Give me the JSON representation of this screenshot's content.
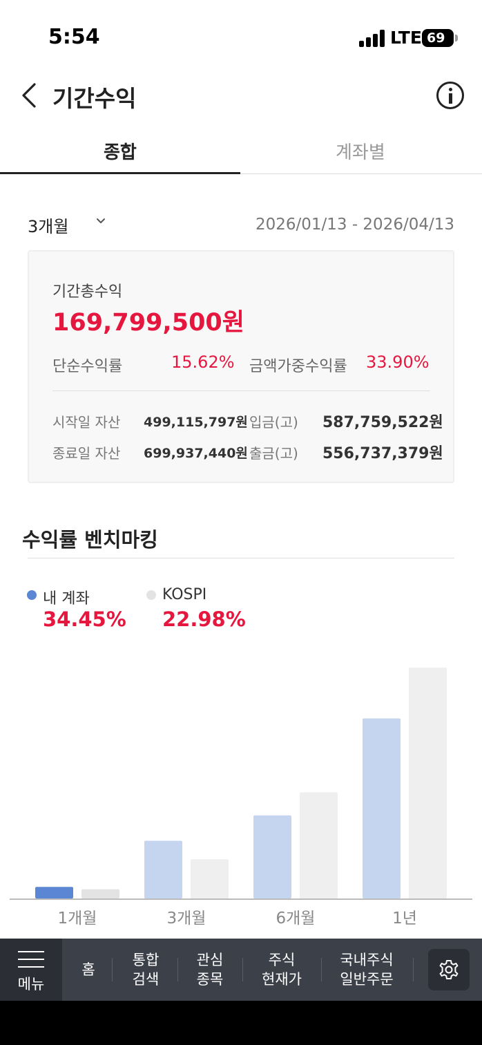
{
  "status_bar": {
    "time": "5:54",
    "network": "LTE",
    "battery": "69"
  },
  "header": {
    "title": "기간수익"
  },
  "tabs": [
    {
      "label": "종합",
      "active": true
    },
    {
      "label": "계좌별",
      "active": false
    }
  ],
  "period": {
    "selected": "3개월",
    "date_range": "2026/01/13 - 2026/04/13"
  },
  "summary": {
    "total_label": "기간총수익",
    "total_value": "169,799,500원",
    "simple_rate_label": "단순수익률",
    "simple_rate_value": "15.62%",
    "weighted_rate_label": "금액가중수익률",
    "weighted_rate_value": "33.90%",
    "start_asset_label": "시작일 자산",
    "start_asset_value": "499,115,797원",
    "end_asset_label": "종료일 자산",
    "end_asset_value": "699,937,440원",
    "deposit_label": "입금(고)",
    "deposit_value": "587,759,522원",
    "withdrawal_label": "출금(고)",
    "withdrawal_value": "556,737,379원"
  },
  "benchmark": {
    "title": "수익률 벤치마킹",
    "my_account_label": "내 계좌",
    "my_account_value": "34.45%",
    "kospi_label": "KOSPI",
    "kospi_value": "22.98%"
  },
  "chart_data": {
    "type": "bar",
    "categories": [
      "1개월",
      "3개월",
      "6개월",
      "1년"
    ],
    "series": [
      {
        "name": "내 계좌",
        "values": [
          5,
          25,
          36,
          78
        ],
        "colors": [
          "#5b86d4",
          "#c5d5ef",
          "#c5d5ef",
          "#c5d5ef"
        ]
      },
      {
        "name": "KOSPI",
        "values": [
          4,
          17,
          46,
          100
        ],
        "colors": [
          "#e3e3e3",
          "#efefef",
          "#efefef",
          "#efefef"
        ]
      }
    ],
    "ylim": [
      0,
      100
    ],
    "grid": false,
    "legend": "top-left"
  },
  "bottom_nav": {
    "menu_label": "메뉴",
    "items": [
      "홈",
      "통합\n검색",
      "관심\n종목",
      "주식\n현재가",
      "국내주식\n일반주문"
    ]
  },
  "colors": {
    "accent_red": "#e5173f",
    "my_account": "#5b86d4",
    "kospi": "#e3e3e3",
    "nav_bg": "#3c4049"
  }
}
